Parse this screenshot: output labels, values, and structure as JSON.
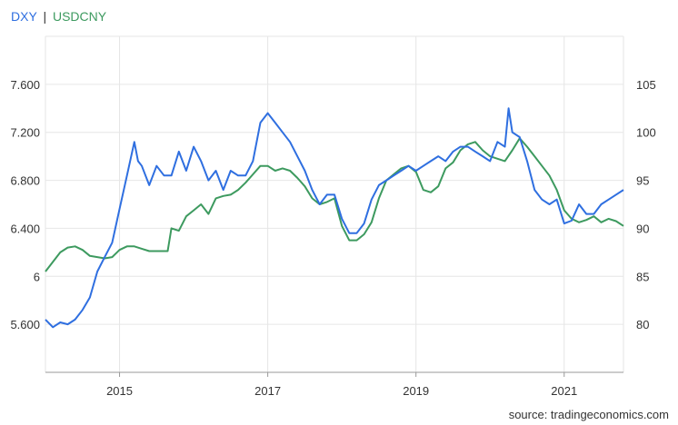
{
  "legend": {
    "series1": "DXY",
    "separator": "|",
    "series2": "USDCNY"
  },
  "source": "source: tradingeconomics.com",
  "colors": {
    "dxy": "#2f6fe0",
    "usdcny": "#3d9a5f",
    "grid": "#e6e6e6"
  },
  "chart_data": {
    "type": "line",
    "title": "",
    "legend_placement": "top-left",
    "grid": true,
    "x_ticks": [
      "2015",
      "2017",
      "2019",
      "2021"
    ],
    "x_tick_values": [
      2015,
      2017,
      2019,
      2021
    ],
    "xlim": [
      2014.0,
      2021.8
    ],
    "left_axis": {
      "ticks": [
        "5.600",
        "6",
        "6.400",
        "6.800",
        "7.200",
        "7.600"
      ],
      "tick_values": [
        5.6,
        6.0,
        6.4,
        6.8,
        7.2,
        7.6
      ],
      "ylim": [
        5.2,
        8.0
      ]
    },
    "right_axis": {
      "ticks": [
        "80",
        "85",
        "90",
        "95",
        "100",
        "105"
      ],
      "tick_values": [
        80,
        85,
        90,
        95,
        100,
        105
      ],
      "ylim": [
        75,
        110
      ]
    },
    "series": [
      {
        "name": "USDCNY",
        "axis": "left",
        "color": "#3d9a5f",
        "x": [
          2014.0,
          2014.1,
          2014.2,
          2014.3,
          2014.4,
          2014.5,
          2014.6,
          2014.7,
          2014.8,
          2014.9,
          2015.0,
          2015.1,
          2015.2,
          2015.3,
          2015.4,
          2015.5,
          2015.6,
          2015.65,
          2015.7,
          2015.8,
          2015.9,
          2016.0,
          2016.1,
          2016.2,
          2016.3,
          2016.4,
          2016.5,
          2016.6,
          2016.7,
          2016.8,
          2016.9,
          2017.0,
          2017.1,
          2017.2,
          2017.3,
          2017.4,
          2017.5,
          2017.6,
          2017.7,
          2017.8,
          2017.9,
          2018.0,
          2018.1,
          2018.2,
          2018.3,
          2018.4,
          2018.5,
          2018.6,
          2018.7,
          2018.8,
          2018.9,
          2019.0,
          2019.1,
          2019.2,
          2019.3,
          2019.4,
          2019.5,
          2019.6,
          2019.7,
          2019.8,
          2019.9,
          2020.0,
          2020.1,
          2020.2,
          2020.3,
          2020.4,
          2020.5,
          2020.6,
          2020.7,
          2020.8,
          2020.9,
          2021.0,
          2021.1,
          2021.2,
          2021.3,
          2021.4,
          2021.5,
          2021.6,
          2021.7,
          2021.8
        ],
        "y": [
          6.04,
          6.12,
          6.2,
          6.24,
          6.25,
          6.22,
          6.17,
          6.16,
          6.15,
          6.16,
          6.22,
          6.25,
          6.25,
          6.23,
          6.21,
          6.21,
          6.21,
          6.21,
          6.4,
          6.38,
          6.5,
          6.55,
          6.6,
          6.52,
          6.65,
          6.67,
          6.68,
          6.72,
          6.78,
          6.85,
          6.92,
          6.92,
          6.88,
          6.9,
          6.88,
          6.82,
          6.75,
          6.65,
          6.6,
          6.62,
          6.65,
          6.42,
          6.3,
          6.3,
          6.35,
          6.45,
          6.65,
          6.8,
          6.85,
          6.9,
          6.92,
          6.87,
          6.72,
          6.7,
          6.75,
          6.9,
          6.95,
          7.05,
          7.1,
          7.12,
          7.05,
          7.0,
          6.98,
          6.96,
          7.05,
          7.15,
          7.08,
          7.0,
          6.92,
          6.84,
          6.72,
          6.55,
          6.48,
          6.45,
          6.47,
          6.5,
          6.45,
          6.48,
          6.46,
          6.42
        ]
      },
      {
        "name": "DXY",
        "axis": "right",
        "color": "#2f6fe0",
        "x": [
          2014.0,
          2014.1,
          2014.2,
          2014.3,
          2014.4,
          2014.5,
          2014.6,
          2014.7,
          2014.8,
          2014.9,
          2015.0,
          2015.1,
          2015.2,
          2015.25,
          2015.3,
          2015.4,
          2015.5,
          2015.6,
          2015.7,
          2015.8,
          2015.9,
          2016.0,
          2016.1,
          2016.2,
          2016.3,
          2016.4,
          2016.5,
          2016.6,
          2016.7,
          2016.8,
          2016.9,
          2017.0,
          2017.1,
          2017.2,
          2017.3,
          2017.4,
          2017.5,
          2017.6,
          2017.7,
          2017.8,
          2017.9,
          2018.0,
          2018.1,
          2018.2,
          2018.3,
          2018.4,
          2018.5,
          2018.6,
          2018.7,
          2018.8,
          2018.9,
          2019.0,
          2019.1,
          2019.2,
          2019.3,
          2019.4,
          2019.5,
          2019.6,
          2019.7,
          2019.8,
          2019.9,
          2020.0,
          2020.1,
          2020.2,
          2020.25,
          2020.3,
          2020.4,
          2020.5,
          2020.6,
          2020.7,
          2020.8,
          2020.9,
          2021.0,
          2021.1,
          2021.2,
          2021.3,
          2021.4,
          2021.5,
          2021.6,
          2021.7,
          2021.8
        ],
        "y": [
          80.5,
          79.7,
          80.2,
          80.0,
          80.5,
          81.5,
          82.8,
          85.5,
          87.0,
          88.5,
          92.0,
          95.5,
          99.0,
          97.0,
          96.5,
          94.5,
          96.5,
          95.5,
          95.5,
          98.0,
          96.0,
          98.5,
          97.0,
          95.0,
          96.0,
          94.0,
          96.0,
          95.5,
          95.5,
          97.0,
          101.0,
          102.0,
          101.0,
          100.0,
          99.0,
          97.5,
          96.0,
          94.0,
          92.5,
          93.5,
          93.5,
          91.0,
          89.5,
          89.5,
          90.5,
          93.0,
          94.5,
          95.0,
          95.5,
          96.0,
          96.5,
          96.0,
          96.5,
          97.0,
          97.5,
          97.0,
          98.0,
          98.5,
          98.5,
          98.0,
          97.5,
          97.0,
          99.0,
          98.5,
          102.5,
          100.0,
          99.5,
          97.0,
          94.0,
          93.0,
          92.5,
          93.0,
          90.5,
          90.8,
          92.5,
          91.5,
          91.5,
          92.5,
          93.0,
          93.5,
          94.0
        ]
      }
    ]
  }
}
